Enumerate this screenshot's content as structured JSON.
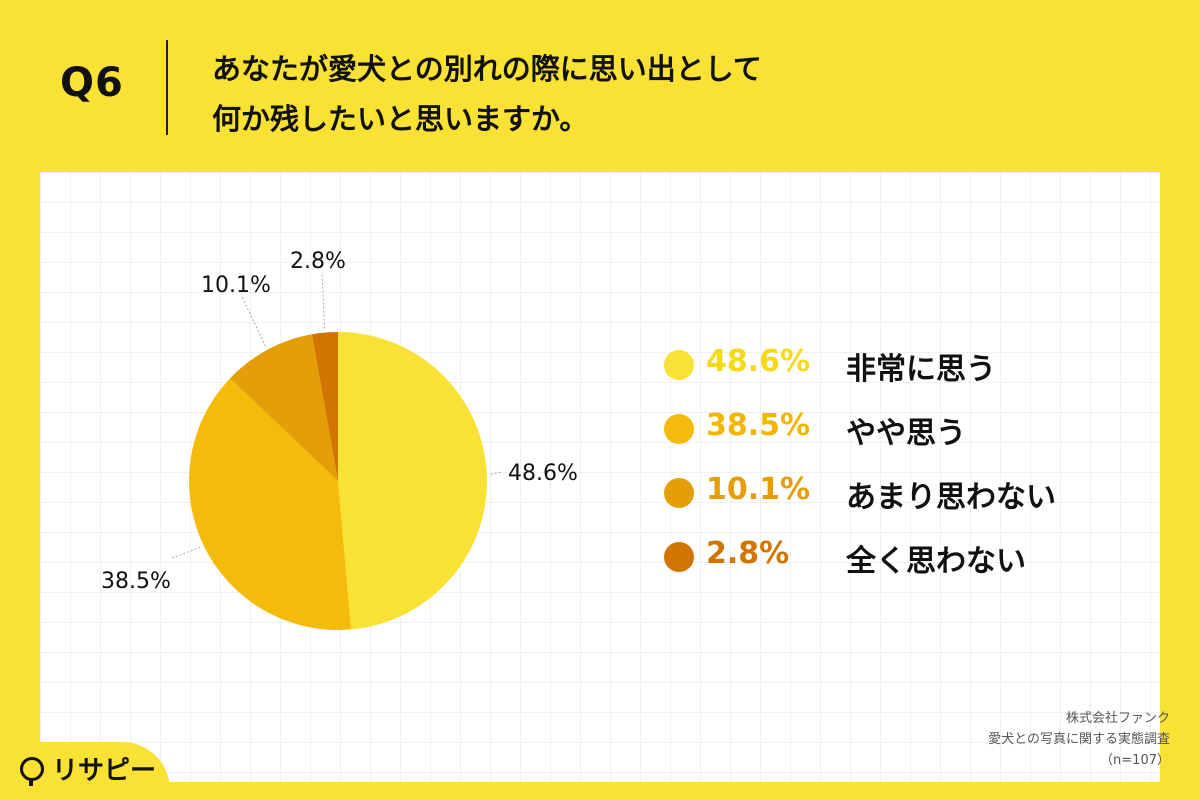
{
  "header": {
    "q_label": "Q6",
    "question_line1": "あなたが愛犬との別れの際に思い出として",
    "question_line2": "何か残したいと思いますか。"
  },
  "chart_data": {
    "type": "pie",
    "title": "",
    "start_angle_deg": 0,
    "direction": "clockwise",
    "slices": [
      {
        "label": "非常に思う",
        "value": 48.6,
        "display": "48.6%",
        "color": "#f9e234"
      },
      {
        "label": "やや思う",
        "value": 38.5,
        "display": "38.5%",
        "color": "#f5bb0a"
      },
      {
        "label": "あまり思わない",
        "value": 10.1,
        "display": "10.1%",
        "color": "#e39e08"
      },
      {
        "label": "全く思わない",
        "value": 2.8,
        "display": "2.8%",
        "color": "#d27500"
      }
    ],
    "pct_colors": [
      "#f7d91a",
      "#f3b600",
      "#e39e08",
      "#d27500"
    ]
  },
  "source": {
    "company": "株式会社ファンク",
    "survey": "愛犬との写真に関する実態調査",
    "sample": "（n=107）"
  },
  "logo": {
    "text": "リサピー"
  }
}
